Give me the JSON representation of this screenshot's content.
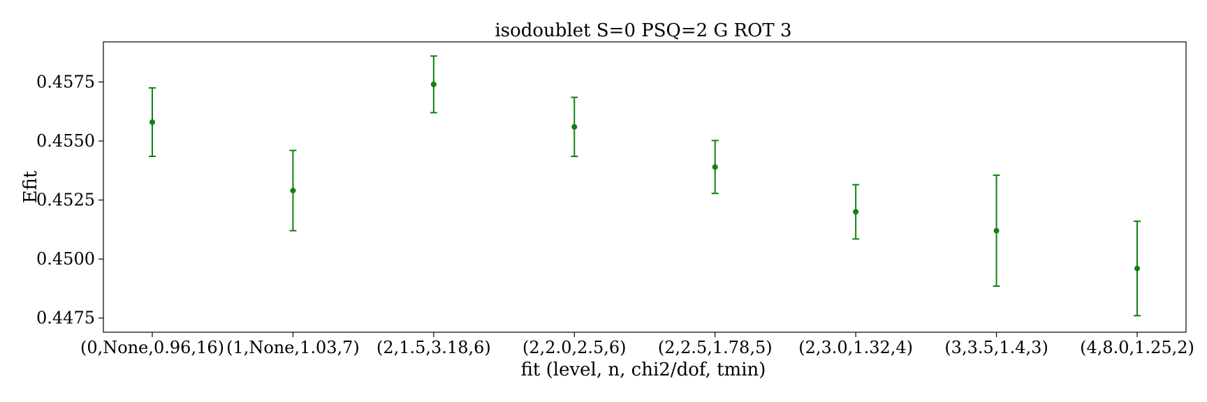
{
  "chart_data": {
    "type": "scatter",
    "title": "isodoublet S=0 PSQ=2 G ROT 3",
    "xlabel": "fit (level, n, chi2/dof, tmin)",
    "ylabel": "Efit",
    "categories": [
      "(0,None,0.96,16)",
      "(1,None,1.03,7)",
      "(2,1.5,3.18,6)",
      "(2,2.0,2.5,6)",
      "(2,2.5,1.78,5)",
      "(2,3.0,1.32,4)",
      "(3,3.5,1.4,3)",
      "(4,8.0,1.25,2)"
    ],
    "values": [
      0.4558,
      0.4529,
      0.4574,
      0.4556,
      0.4539,
      0.452,
      0.4512,
      0.4496
    ],
    "errors": [
      0.00145,
      0.0017,
      0.0012,
      0.00125,
      0.00112,
      0.00115,
      0.00235,
      0.002
    ],
    "yticks": [
      "0.4475",
      "0.4500",
      "0.4525",
      "0.4550",
      "0.4575"
    ],
    "ytick_values": [
      0.4475,
      0.45,
      0.4525,
      0.455,
      0.4575
    ],
    "ylim": [
      0.4469,
      0.4592
    ],
    "color": "#118011",
    "grid": false
  }
}
